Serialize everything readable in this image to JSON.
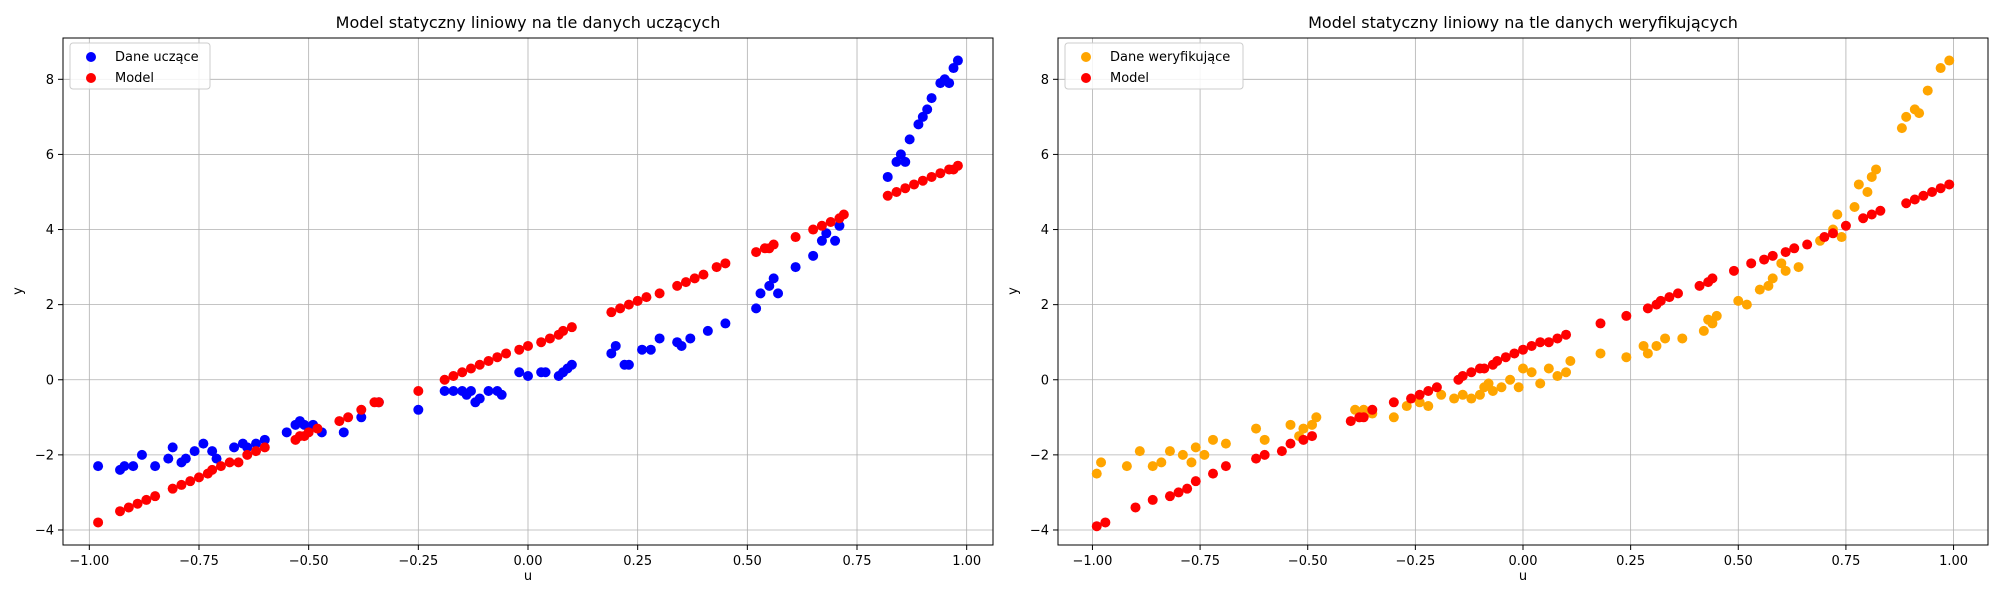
{
  "chart_data": [
    {
      "type": "scatter",
      "title": "Model statyczny liniowy na tle danych uczących",
      "xlabel": "u",
      "ylabel": "y",
      "xlim": [
        -1.06,
        1.06
      ],
      "ylim": [
        -4.4,
        9.1
      ],
      "xticks": [
        -1.0,
        -0.75,
        -0.5,
        -0.25,
        0.0,
        0.25,
        0.5,
        0.75,
        1.0
      ],
      "xtick_labels": [
        "−1.00",
        "−0.75",
        "−0.50",
        "−0.25",
        "0.00",
        "0.25",
        "0.50",
        "0.75",
        "1.00"
      ],
      "yticks": [
        -4,
        -2,
        0,
        2,
        4,
        6,
        8
      ],
      "ytick_labels": [
        "−4",
        "−2",
        "0",
        "2",
        "4",
        "6",
        "8"
      ],
      "grid": true,
      "legend_position": "top-left",
      "series": [
        {
          "name": "Dane uczące",
          "color": "#0000ff",
          "x": [
            -0.98,
            -0.93,
            -0.92,
            -0.9,
            -0.88,
            -0.85,
            -0.82,
            -0.81,
            -0.79,
            -0.78,
            -0.76,
            -0.74,
            -0.72,
            -0.71,
            -0.67,
            -0.65,
            -0.64,
            -0.62,
            -0.6,
            -0.55,
            -0.53,
            -0.52,
            -0.51,
            -0.49,
            -0.47,
            -0.42,
            -0.38,
            -0.34,
            -0.25,
            -0.19,
            -0.17,
            -0.15,
            -0.14,
            -0.13,
            -0.12,
            -0.11,
            -0.09,
            -0.07,
            -0.06,
            -0.02,
            0.0,
            0.03,
            0.04,
            0.07,
            0.08,
            0.09,
            0.1,
            0.19,
            0.2,
            0.22,
            0.23,
            0.26,
            0.28,
            0.3,
            0.34,
            0.35,
            0.37,
            0.41,
            0.45,
            0.52,
            0.53,
            0.55,
            0.56,
            0.57,
            0.61,
            0.65,
            0.67,
            0.68,
            0.7,
            0.71,
            0.82,
            0.84,
            0.85,
            0.86,
            0.87,
            0.89,
            0.9,
            0.91,
            0.92,
            0.94,
            0.95,
            0.96,
            0.97,
            0.98
          ],
          "y": [
            -2.3,
            -2.4,
            -2.3,
            -2.3,
            -2.0,
            -2.3,
            -2.1,
            -1.8,
            -2.2,
            -2.1,
            -1.9,
            -1.7,
            -1.9,
            -2.1,
            -1.8,
            -1.7,
            -1.8,
            -1.7,
            -1.6,
            -1.4,
            -1.2,
            -1.1,
            -1.2,
            -1.2,
            -1.4,
            -1.4,
            -1.0,
            -0.6,
            -0.8,
            -0.3,
            -0.3,
            -0.3,
            -0.4,
            -0.3,
            -0.6,
            -0.5,
            -0.3,
            -0.3,
            -0.4,
            0.2,
            0.1,
            0.2,
            0.2,
            0.1,
            0.2,
            0.3,
            0.4,
            0.7,
            0.9,
            0.4,
            0.4,
            0.8,
            0.8,
            1.1,
            1.0,
            0.9,
            1.1,
            1.3,
            1.5,
            1.9,
            2.3,
            2.5,
            2.7,
            2.3,
            3.0,
            3.3,
            3.7,
            3.9,
            3.7,
            4.1,
            5.4,
            5.8,
            6.0,
            5.8,
            6.4,
            6.8,
            7.0,
            7.2,
            7.5,
            7.9,
            8.0,
            7.9,
            8.3,
            8.5
          ]
        },
        {
          "name": "Model",
          "color": "#ff0000",
          "x": [
            -0.98,
            -0.93,
            -0.91,
            -0.89,
            -0.87,
            -0.85,
            -0.81,
            -0.79,
            -0.77,
            -0.75,
            -0.73,
            -0.72,
            -0.7,
            -0.68,
            -0.66,
            -0.64,
            -0.62,
            -0.6,
            -0.53,
            -0.52,
            -0.51,
            -0.5,
            -0.48,
            -0.43,
            -0.41,
            -0.38,
            -0.35,
            -0.34,
            -0.25,
            -0.19,
            -0.17,
            -0.15,
            -0.13,
            -0.11,
            -0.09,
            -0.07,
            -0.05,
            -0.02,
            0.0,
            0.03,
            0.05,
            0.07,
            0.08,
            0.1,
            0.19,
            0.21,
            0.23,
            0.25,
            0.27,
            0.3,
            0.34,
            0.36,
            0.38,
            0.4,
            0.43,
            0.45,
            0.52,
            0.54,
            0.55,
            0.56,
            0.61,
            0.65,
            0.67,
            0.69,
            0.71,
            0.72,
            0.82,
            0.84,
            0.86,
            0.88,
            0.9,
            0.92,
            0.94,
            0.96,
            0.97,
            0.98
          ],
          "y": [
            -3.8,
            -3.5,
            -3.4,
            -3.3,
            -3.2,
            -3.1,
            -2.9,
            -2.8,
            -2.7,
            -2.6,
            -2.5,
            -2.4,
            -2.3,
            -2.2,
            -2.2,
            -2.0,
            -1.9,
            -1.8,
            -1.6,
            -1.5,
            -1.5,
            -1.4,
            -1.3,
            -1.1,
            -1.0,
            -0.8,
            -0.6,
            -0.6,
            -0.3,
            0.0,
            0.1,
            0.2,
            0.3,
            0.4,
            0.5,
            0.6,
            0.7,
            0.8,
            0.9,
            1.0,
            1.1,
            1.2,
            1.3,
            1.4,
            1.8,
            1.9,
            2.0,
            2.1,
            2.2,
            2.3,
            2.5,
            2.6,
            2.7,
            2.8,
            3.0,
            3.1,
            3.4,
            3.5,
            3.5,
            3.6,
            3.8,
            4.0,
            4.1,
            4.2,
            4.3,
            4.4,
            4.9,
            5.0,
            5.1,
            5.2,
            5.3,
            5.4,
            5.5,
            5.6,
            5.6,
            5.7
          ]
        }
      ]
    },
    {
      "type": "scatter",
      "title": "Model statyczny liniowy na tle danych weryfikujących",
      "xlabel": "u",
      "ylabel": "y",
      "xlim": [
        -1.08,
        1.08
      ],
      "ylim": [
        -4.4,
        9.1
      ],
      "xticks": [
        -1.0,
        -0.75,
        -0.5,
        -0.25,
        0.0,
        0.25,
        0.5,
        0.75,
        1.0
      ],
      "xtick_labels": [
        "−1.00",
        "−0.75",
        "−0.50",
        "−0.25",
        "0.00",
        "0.25",
        "0.50",
        "0.75",
        "1.00"
      ],
      "yticks": [
        -4,
        -2,
        0,
        2,
        4,
        6,
        8
      ],
      "ytick_labels": [
        "−4",
        "−2",
        "0",
        "2",
        "4",
        "6",
        "8"
      ],
      "grid": true,
      "legend_position": "top-left",
      "series": [
        {
          "name": "Dane weryfikujące",
          "color": "#ffa500",
          "x": [
            -0.99,
            -0.98,
            -0.92,
            -0.89,
            -0.86,
            -0.84,
            -0.82,
            -0.79,
            -0.77,
            -0.76,
            -0.74,
            -0.72,
            -0.69,
            -0.62,
            -0.6,
            -0.54,
            -0.52,
            -0.51,
            -0.49,
            -0.48,
            -0.39,
            -0.38,
            -0.37,
            -0.35,
            -0.3,
            -0.27,
            -0.24,
            -0.22,
            -0.19,
            -0.16,
            -0.14,
            -0.12,
            -0.1,
            -0.09,
            -0.08,
            -0.07,
            -0.05,
            -0.03,
            -0.01,
            0.0,
            0.02,
            0.04,
            0.06,
            0.08,
            0.1,
            0.11,
            0.18,
            0.24,
            0.28,
            0.29,
            0.31,
            0.33,
            0.37,
            0.42,
            0.43,
            0.44,
            0.45,
            0.5,
            0.52,
            0.55,
            0.57,
            0.58,
            0.6,
            0.61,
            0.64,
            0.69,
            0.72,
            0.73,
            0.74,
            0.77,
            0.78,
            0.8,
            0.81,
            0.82,
            0.88,
            0.89,
            0.91,
            0.92,
            0.94,
            0.97,
            0.99
          ],
          "y": [
            -2.5,
            -2.2,
            -2.3,
            -1.9,
            -2.3,
            -2.2,
            -1.9,
            -2.0,
            -2.2,
            -1.8,
            -2.0,
            -1.6,
            -1.7,
            -1.3,
            -1.6,
            -1.2,
            -1.5,
            -1.3,
            -1.2,
            -1.0,
            -0.8,
            -1.0,
            -0.8,
            -0.9,
            -1.0,
            -0.7,
            -0.6,
            -0.7,
            -0.4,
            -0.5,
            -0.4,
            -0.5,
            -0.4,
            -0.2,
            -0.1,
            -0.3,
            -0.2,
            0.0,
            -0.2,
            0.3,
            0.2,
            -0.1,
            0.3,
            0.1,
            0.2,
            0.5,
            0.7,
            0.6,
            0.9,
            0.7,
            0.9,
            1.1,
            1.1,
            1.3,
            1.6,
            1.5,
            1.7,
            2.1,
            2.0,
            2.4,
            2.5,
            2.7,
            3.1,
            2.9,
            3.0,
            3.7,
            4.0,
            4.4,
            3.8,
            4.6,
            5.2,
            5.0,
            5.4,
            5.6,
            6.7,
            7.0,
            7.2,
            7.1,
            7.7,
            8.3,
            8.5
          ]
        },
        {
          "name": "Model",
          "color": "#ff0000",
          "x": [
            -0.99,
            -0.97,
            -0.9,
            -0.86,
            -0.82,
            -0.8,
            -0.78,
            -0.76,
            -0.72,
            -0.69,
            -0.62,
            -0.6,
            -0.56,
            -0.54,
            -0.51,
            -0.49,
            -0.4,
            -0.38,
            -0.37,
            -0.35,
            -0.3,
            -0.26,
            -0.24,
            -0.22,
            -0.2,
            -0.15,
            -0.14,
            -0.12,
            -0.1,
            -0.09,
            -0.07,
            -0.06,
            -0.04,
            -0.02,
            0.0,
            0.02,
            0.04,
            0.06,
            0.08,
            0.1,
            0.18,
            0.24,
            0.29,
            0.31,
            0.32,
            0.34,
            0.36,
            0.41,
            0.43,
            0.44,
            0.49,
            0.53,
            0.56,
            0.58,
            0.61,
            0.63,
            0.66,
            0.7,
            0.72,
            0.75,
            0.79,
            0.81,
            0.83,
            0.89,
            0.91,
            0.93,
            0.95,
            0.97,
            0.99
          ],
          "y": [
            -3.9,
            -3.8,
            -3.4,
            -3.2,
            -3.1,
            -3.0,
            -2.9,
            -2.7,
            -2.5,
            -2.3,
            -2.1,
            -2.0,
            -1.9,
            -1.7,
            -1.6,
            -1.5,
            -1.1,
            -1.0,
            -1.0,
            -0.8,
            -0.6,
            -0.5,
            -0.4,
            -0.3,
            -0.2,
            0.0,
            0.1,
            0.2,
            0.3,
            0.3,
            0.4,
            0.5,
            0.6,
            0.7,
            0.8,
            0.9,
            1.0,
            1.0,
            1.1,
            1.2,
            1.5,
            1.7,
            1.9,
            2.0,
            2.1,
            2.2,
            2.3,
            2.5,
            2.6,
            2.7,
            2.9,
            3.1,
            3.2,
            3.3,
            3.4,
            3.5,
            3.6,
            3.8,
            3.9,
            4.1,
            4.3,
            4.4,
            4.5,
            4.7,
            4.8,
            4.9,
            5.0,
            5.1,
            5.2
          ]
        }
      ]
    }
  ]
}
